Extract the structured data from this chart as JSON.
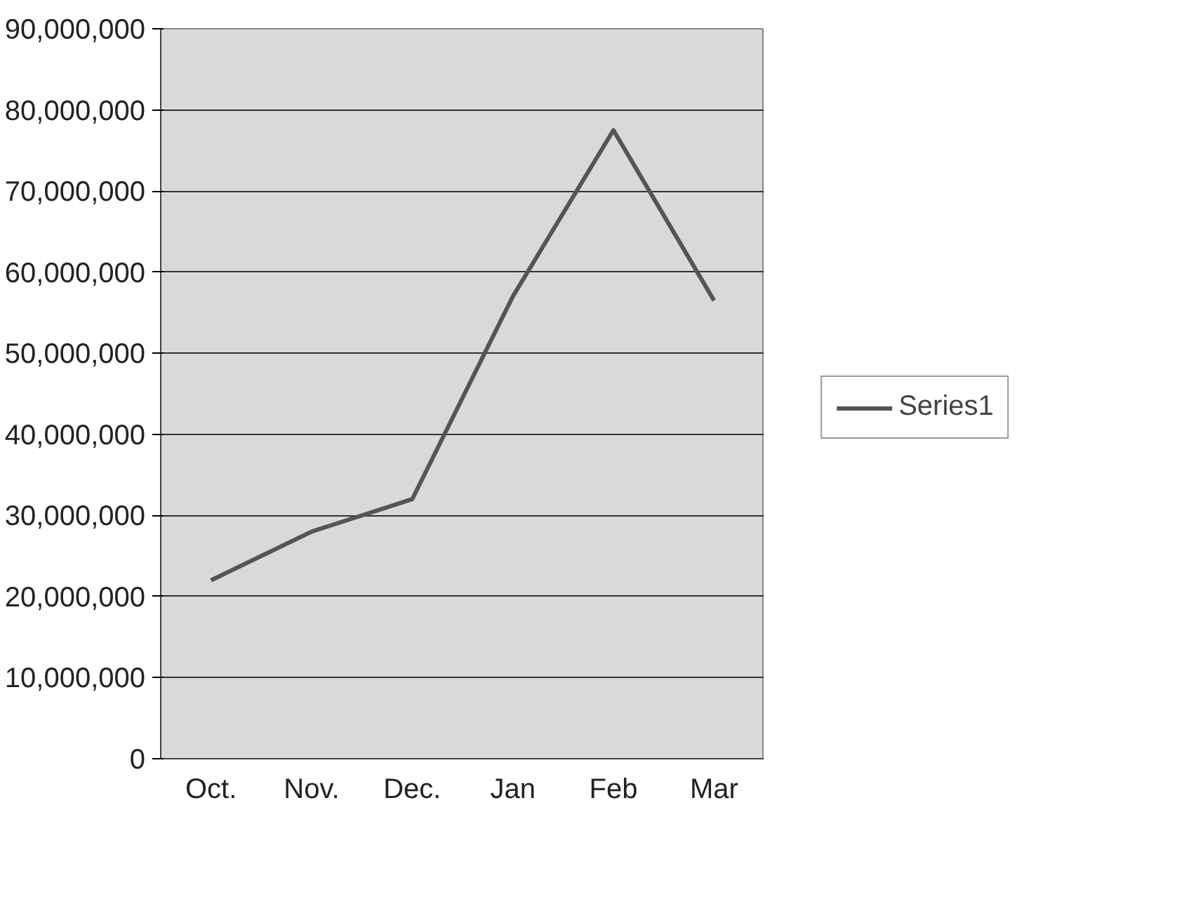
{
  "chart_data": {
    "type": "line",
    "categories": [
      "Oct.",
      "Nov.",
      "Dec.",
      "Jan",
      "Feb",
      "Mar"
    ],
    "series": [
      {
        "name": "Series1",
        "color": "#555555",
        "values": [
          22000000,
          28000000,
          32000000,
          57000000,
          77500000,
          56500000
        ]
      }
    ],
    "ylim": [
      0,
      90000000
    ],
    "yticks": [
      {
        "value": 0,
        "label": "0"
      },
      {
        "value": 10000000,
        "label": "10,000,000"
      },
      {
        "value": 20000000,
        "label": "20,000,000"
      },
      {
        "value": 30000000,
        "label": "30,000,000"
      },
      {
        "value": 40000000,
        "label": "40,000,000"
      },
      {
        "value": 50000000,
        "label": "50,000,000"
      },
      {
        "value": 60000000,
        "label": "60,000,000"
      },
      {
        "value": 70000000,
        "label": "70,000,000"
      },
      {
        "value": 80000000,
        "label": "80,000,000"
      },
      {
        "value": 90000000,
        "label": "90,000,000"
      }
    ],
    "grid": "y",
    "legend": "right",
    "marker": "none",
    "line_style": "solid"
  }
}
